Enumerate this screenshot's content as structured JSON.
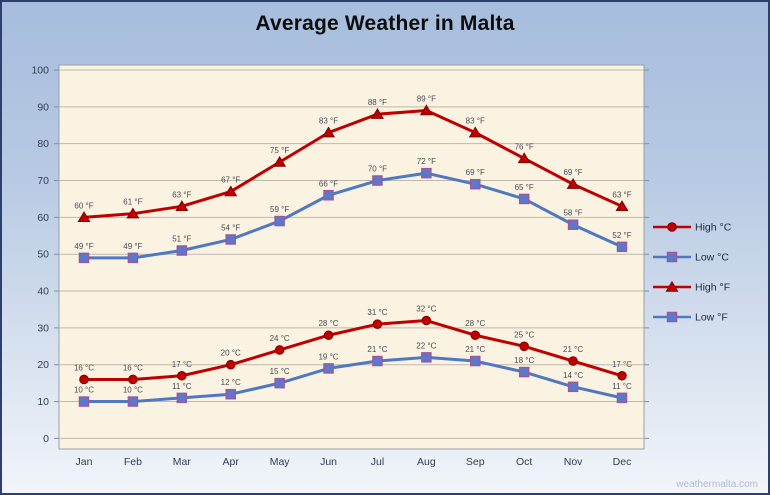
{
  "title": "Average Weather in Malta",
  "watermark": "weathermalta.com",
  "colors": {
    "red": "#C00000",
    "red_dark": "#7f0000",
    "blue": "#4F77C3",
    "square_fill": "#5B79C8",
    "square_stroke": "#A2549A",
    "plot_bg": "#FBF3E2",
    "plot_border": "#9aa0a6",
    "grid": "#BEB8AB",
    "axis_text": "#333C52",
    "point_label": "#4a4a55",
    "legend_text": "#222b3f"
  },
  "chart_data": {
    "type": "line",
    "title": "Average Weather in Malta",
    "categories": [
      "Jan",
      "Feb",
      "Mar",
      "Apr",
      "May",
      "Jun",
      "Jul",
      "Aug",
      "Sep",
      "Oct",
      "Nov",
      "Dec"
    ],
    "xlabel": "",
    "ylabel": "",
    "ylim": [
      0,
      100
    ],
    "y_step": 10,
    "grid": true,
    "legend_position": "right",
    "series": [
      {
        "name": "High °C",
        "unit": "°C",
        "marker": "circle",
        "color": "#C00000",
        "values": [
          16,
          16,
          17,
          20,
          24,
          28,
          31,
          32,
          28,
          25,
          21,
          17
        ]
      },
      {
        "name": "Low °C",
        "unit": "°C",
        "marker": "square",
        "color": "#4F77C3",
        "values": [
          10,
          10,
          11,
          12,
          15,
          19,
          21,
          22,
          21,
          18,
          14,
          11
        ]
      },
      {
        "name": "High °F",
        "unit": "°F",
        "marker": "triangle",
        "color": "#C00000",
        "values": [
          60,
          61,
          63,
          67,
          75,
          83,
          88,
          89,
          83,
          76,
          69,
          63
        ]
      },
      {
        "name": "Low °F",
        "unit": "°F",
        "marker": "square",
        "color": "#4F77C3",
        "values": [
          49,
          49,
          51,
          54,
          59,
          66,
          70,
          72,
          69,
          65,
          58,
          52
        ]
      }
    ]
  }
}
